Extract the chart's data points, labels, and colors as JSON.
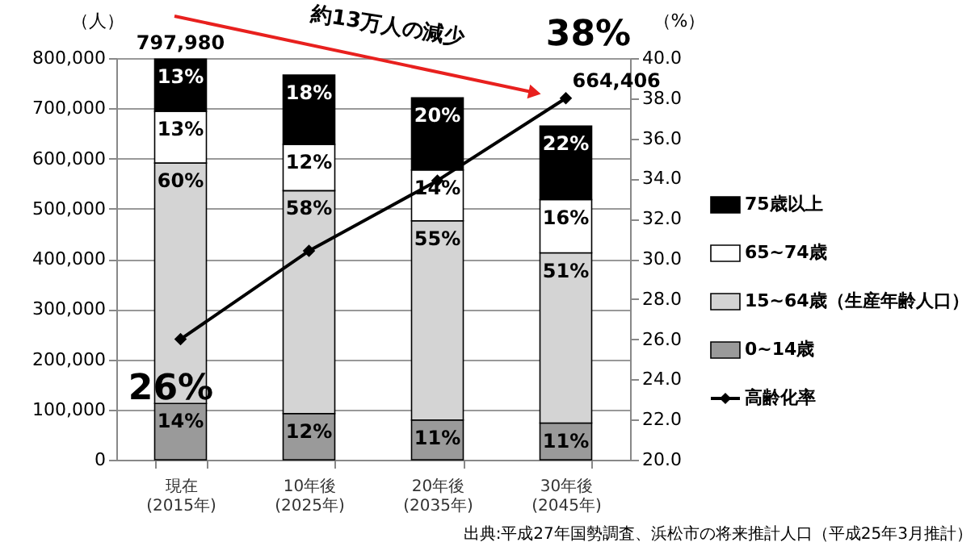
{
  "chart_data": {
    "type": "bar",
    "stacked": true,
    "categories": [
      "現在\n(2015年)",
      "10年後\n(2025年)",
      "20年後\n(2035年)",
      "30年後\n(2045年)"
    ],
    "ylabel": "（人）",
    "y2label": "（%）",
    "series": [
      {
        "name": "0~14歳",
        "color": "#9a9a9a",
        "values": [
          112000,
          92000,
          79000,
          73000
        ]
      },
      {
        "name": "15~64歳（生産年齢人口）",
        "color": "#d4d4d4",
        "values": [
          479000,
          444000,
          397000,
          339000
        ]
      },
      {
        "name": "65~74歳",
        "color": "#ffffff",
        "values": [
          103000,
          92000,
          101000,
          106000
        ]
      },
      {
        "name": "75歳以上",
        "color": "#000000",
        "values": [
          103980,
          138000,
          144000,
          146406
        ]
      },
      {
        "name": "高齢化率",
        "type": "line",
        "axis": "y2",
        "color": "#000000",
        "marker": "diamond",
        "line_style": "solid",
        "values": [
          26.0,
          30.4,
          33.9,
          38.0
        ],
        "value_labels": [
          "26%",
          null,
          null,
          "38%"
        ]
      }
    ],
    "totals": [
      "797,980",
      null,
      null,
      "664,406"
    ],
    "ylim": [
      0,
      800000
    ],
    "yticks": [
      {
        "value": 0,
        "label": "0"
      },
      {
        "value": 100000,
        "label": "100,000"
      },
      {
        "value": 200000,
        "label": "200,000"
      },
      {
        "value": 300000,
        "label": "300,000"
      },
      {
        "value": 400000,
        "label": "400,000"
      },
      {
        "value": 500000,
        "label": "500,000"
      },
      {
        "value": 600000,
        "label": "600,000"
      },
      {
        "value": 700000,
        "label": "700,000"
      },
      {
        "value": 800000,
        "label": "800,000"
      }
    ],
    "y2lim": [
      20,
      40
    ],
    "y2ticks": [
      {
        "value": 20,
        "label": "20.0"
      },
      {
        "value": 22,
        "label": "22.0"
      },
      {
        "value": 24,
        "label": "24.0"
      },
      {
        "value": 26,
        "label": "26.0"
      },
      {
        "value": 28,
        "label": "28.0"
      },
      {
        "value": 30,
        "label": "30.0"
      },
      {
        "value": 32,
        "label": "32.0"
      },
      {
        "value": 34,
        "label": "34.0"
      },
      {
        "value": 36,
        "label": "36.0"
      },
      {
        "value": 38,
        "label": "38.0"
      },
      {
        "value": 40,
        "label": "40.0"
      }
    ],
    "grid": "y",
    "legend": "right",
    "annotations": [
      "約13万人の減少",
      "出典:平成27年国勢調査、浜松市の将来推計人口（平成25年3月推計）",
      {
        "text": "14%",
        "x": "現在\n(2015年)",
        "y": 112000
      },
      {
        "text": "60%",
        "x": "現在\n(2015年)",
        "y": 591000
      },
      {
        "text": "13%",
        "x": "現在\n(2015年)",
        "y": 694000
      },
      {
        "text": "13%",
        "x": "現在\n(2015年)",
        "y": 797980
      },
      {
        "text": "12%",
        "x": "10年後\n(2025年)",
        "y": 92000
      },
      {
        "text": "58%",
        "x": "10年後\n(2025年)",
        "y": 536000
      },
      {
        "text": "12%",
        "x": "10年後\n(2025年)",
        "y": 628000
      },
      {
        "text": "18%",
        "x": "10年後\n(2025年)",
        "y": 766000
      },
      {
        "text": "11%",
        "x": "20年後\n(2035年)",
        "y": 79000
      },
      {
        "text": "55%",
        "x": "20年後\n(2035年)",
        "y": 476000
      },
      {
        "text": "14%",
        "x": "20年後\n(2035年)",
        "y": 577000
      },
      {
        "text": "20%",
        "x": "20年後\n(2035年)",
        "y": 721000
      },
      {
        "text": "11%",
        "x": "30年後\n(2045年)",
        "y": 73000
      },
      {
        "text": "51%",
        "x": "30年後\n(2045年)",
        "y": 412000
      },
      {
        "text": "16%",
        "x": "30年後\n(2045年)",
        "y": 518000
      },
      {
        "text": "22%",
        "x": "30年後\n(2045年)",
        "y": 664406
      }
    ]
  }
}
